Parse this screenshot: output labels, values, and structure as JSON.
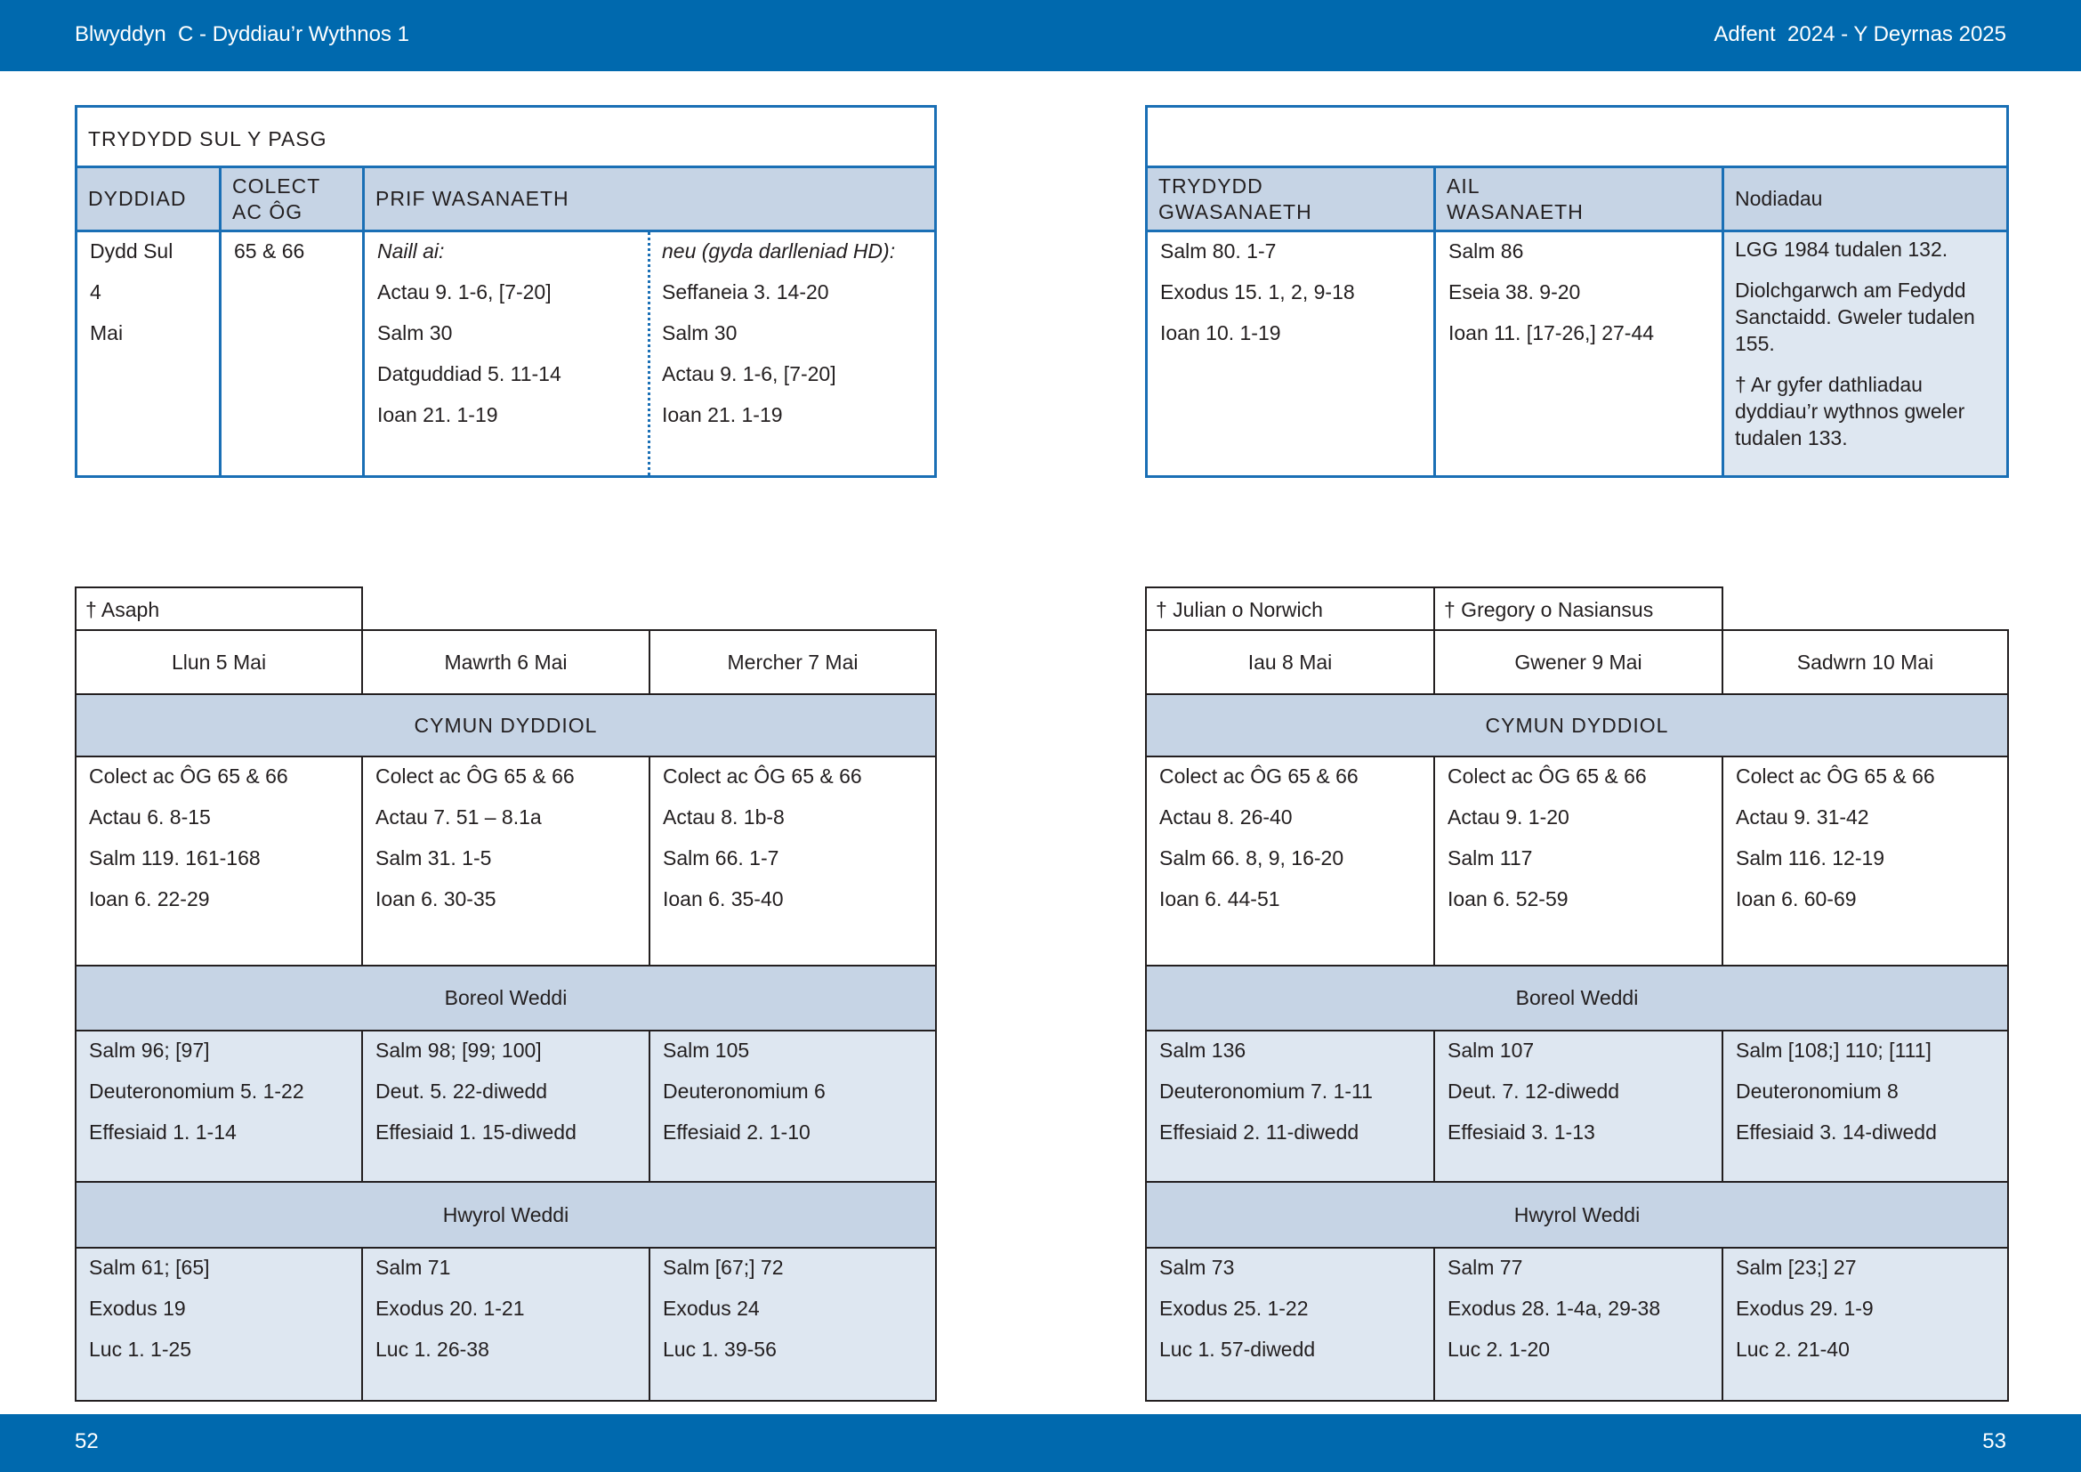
{
  "header": {
    "left": "Blwyddyn  C - Dyddiau’r Wythnos 1",
    "right": "Adfent  2024 - Y Deyrnas 2025"
  },
  "footer": {
    "left": "52",
    "right": "53"
  },
  "sunday": {
    "title": "TRYDYDD SUL Y PASG",
    "headers": [
      "DYDDIAD",
      "COLECT\nAC ÔG",
      "PRIF WASANAETH"
    ],
    "date_lines": [
      "Dydd Sul",
      "4",
      "Mai"
    ],
    "collect": "65 & 66",
    "main_a": {
      "label": "Naill ai:",
      "lines": [
        "Actau 9. 1-6, [7-20]",
        "Salm 30",
        "Datguddiad 5. 11-14",
        "Ioan 21. 1-19"
      ]
    },
    "main_b": {
      "label": "neu (gyda darlleniad HD):",
      "lines": [
        "Seffaneia 3. 14-20",
        "Salm 30",
        "Actau 9. 1-6, [7-20]",
        "Ioan 21. 1-19"
      ]
    }
  },
  "sunday_right": {
    "headers": [
      "TRYDYDD\nGWASANAETH",
      "AIL\nWASANAETH",
      "Nodiadau"
    ],
    "third": [
      "Salm 80. 1-7",
      "Exodus 15. 1, 2, 9-18",
      "Ioan 10. 1-19"
    ],
    "second": [
      "Salm 86",
      "Eseia 38. 9-20",
      "Ioan 11. [17-26,] 27-44"
    ],
    "notes": [
      "LGG 1984 tudalen 132.",
      "Diolchgarwch am Fedydd Sanctaidd. Gweler tudalen 155.",
      "† Ar gyfer dathliadau dyddiau’r wythnos gweler tudalen 133."
    ]
  },
  "week_left": {
    "tags": [
      "† Asaph",
      "",
      ""
    ],
    "days": [
      "Llun 5 Mai",
      "Mawrth 6 Mai",
      "Mercher 7 Mai"
    ],
    "cymun_label": "CYMUN DYDDIOL",
    "cymun": [
      [
        "Colect ac ÔG 65 & 66",
        "Actau 6. 8-15",
        "Salm 119. 161-168",
        "Ioan 6. 22-29"
      ],
      [
        "Colect ac ÔG 65 & 66",
        "Actau 7. 51 – 8.1a",
        "Salm 31. 1-5",
        "Ioan 6. 30-35"
      ],
      [
        "Colect ac ÔG 65 & 66",
        "Actau 8. 1b-8",
        "Salm 66. 1-7",
        "Ioan 6. 35-40"
      ]
    ],
    "boreol_label": "Boreol Weddi",
    "boreol": [
      [
        "Salm 96; [97]",
        "Deuteronomium 5. 1-22",
        "Effesiaid 1. 1-14"
      ],
      [
        "Salm 98; [99; 100]",
        "Deut. 5. 22-diwedd",
        "Effesiaid 1. 15-diwedd"
      ],
      [
        "Salm 105",
        "Deuteronomium 6",
        "Effesiaid 2. 1-10"
      ]
    ],
    "hwyrol_label": "Hwyrol Weddi",
    "hwyrol": [
      [
        "Salm 61; [65]",
        "Exodus 19",
        "Luc 1. 1-25"
      ],
      [
        "Salm 71",
        "Exodus 20. 1-21",
        "Luc 1. 26-38"
      ],
      [
        "Salm [67;] 72",
        "Exodus 24",
        "Luc 1. 39-56"
      ]
    ]
  },
  "week_right": {
    "tags": [
      "† Julian o Norwich",
      "† Gregory o Nasiansus",
      ""
    ],
    "days": [
      "Iau 8 Mai",
      "Gwener 9 Mai",
      "Sadwrn 10 Mai"
    ],
    "cymun_label": "CYMUN DYDDIOL",
    "cymun": [
      [
        "Colect ac ÔG 65 & 66",
        "Actau 8. 26-40",
        "Salm 66. 8, 9, 16-20",
        "Ioan 6. 44-51"
      ],
      [
        "Colect ac ÔG 65 & 66",
        "Actau 9. 1-20",
        "Salm 117",
        "Ioan 6. 52-59"
      ],
      [
        "Colect ac ÔG 65 & 66",
        "Actau 9. 31-42",
        "Salm 116. 12-19",
        "Ioan 6. 60-69"
      ]
    ],
    "boreol_label": "Boreol Weddi",
    "boreol": [
      [
        "Salm 136",
        "Deuteronomium 7. 1-11",
        "Effesiaid 2. 11-diwedd"
      ],
      [
        "Salm 107",
        "Deut. 7. 12-diwedd",
        "Effesiaid 3. 1-13"
      ],
      [
        "Salm [108;] 110; [111]",
        "Deuteronomium 8",
        "Effesiaid 3. 14-diwedd"
      ]
    ],
    "hwyrol_label": "Hwyrol Weddi",
    "hwyrol": [
      [
        "Salm 73",
        "Exodus 25. 1-22",
        "Luc 1. 57-diwedd"
      ],
      [
        "Salm 77",
        "Exodus 28. 1-4a, 29-38",
        "Luc 2. 1-20"
      ],
      [
        "Salm [23;] 27",
        "Exodus 29. 1-9",
        "Luc 2. 21-40"
      ]
    ]
  }
}
